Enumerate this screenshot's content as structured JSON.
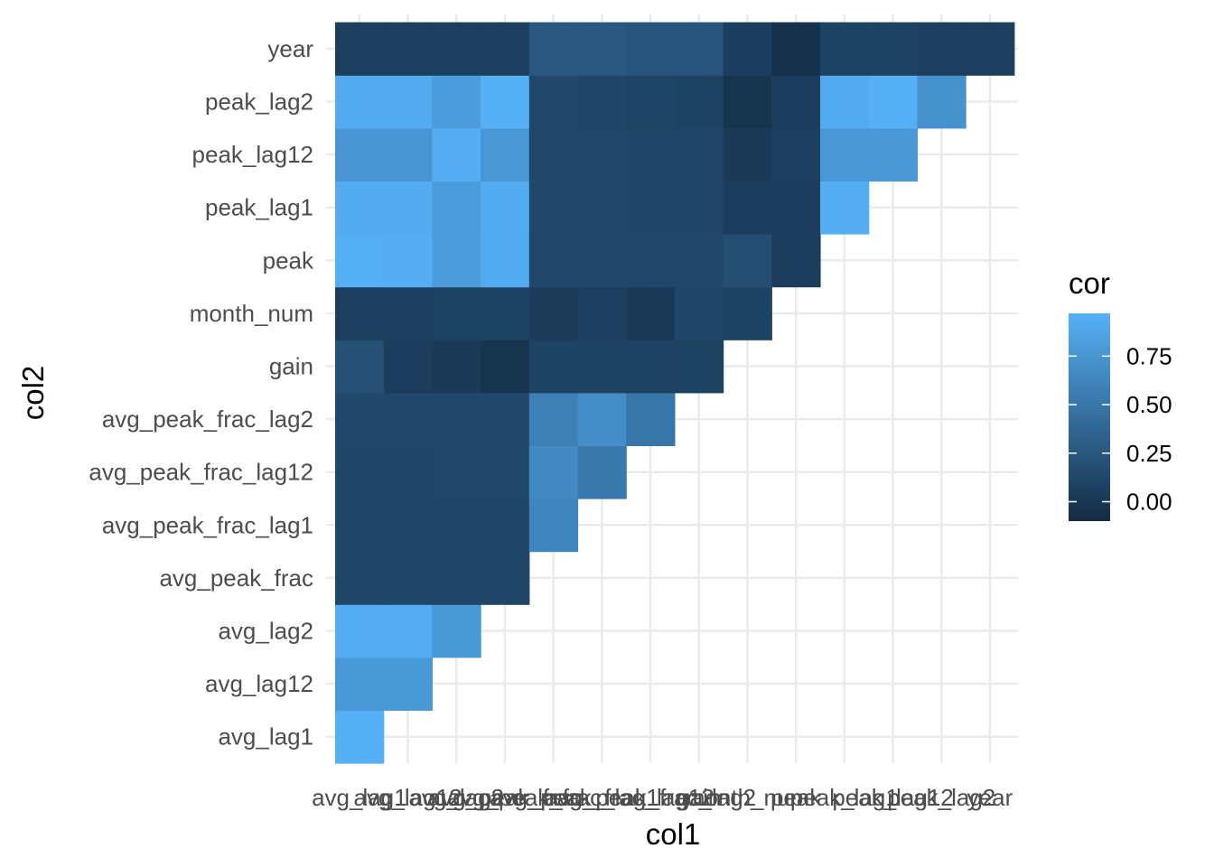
{
  "chart_data": {
    "type": "heatmap",
    "xlabel": "col1",
    "ylabel": "col2",
    "x_categories": [
      "avg_lag1",
      "avg_lag12",
      "avg_lag2",
      "avg_peak_frac",
      "avg_peak_frac_lag1",
      "avg_peak_frac_lag12",
      "avg_peak_frac_lag2",
      "gain",
      "month_num",
      "peak",
      "peak_lag1",
      "peak_lag12",
      "peak_lag2",
      "year"
    ],
    "y_categories": [
      "avg_lag1",
      "avg_lag12",
      "avg_lag2",
      "avg_peak_frac",
      "avg_peak_frac_lag1",
      "avg_peak_frac_lag12",
      "avg_peak_frac_lag2",
      "gain",
      "month_num",
      "peak",
      "peak_lag1",
      "peak_lag12",
      "peak_lag2",
      "year"
    ],
    "grid": true,
    "legend": {
      "title": "cor",
      "position": "right",
      "range": [
        -0.1,
        0.97
      ],
      "ticks": [
        0.0,
        0.25,
        0.5,
        0.75
      ],
      "tick_labels": [
        "0.00",
        "0.25",
        "0.50",
        "0.75"
      ],
      "low_color": "#132B43",
      "high_color": "#56B1F7"
    },
    "cells": {
      "avg_lag1": [
        0.96
      ],
      "avg_lag12": [
        0.78,
        0.78
      ],
      "avg_lag2": [
        0.95,
        0.95,
        0.78
      ],
      "avg_peak_frac": [
        0.12,
        0.12,
        0.12,
        0.12
      ],
      "avg_peak_frac_lag1": [
        0.12,
        0.12,
        0.12,
        0.12,
        0.62
      ],
      "avg_peak_frac_lag12": [
        0.12,
        0.12,
        0.13,
        0.13,
        0.66,
        0.52
      ],
      "avg_peak_frac_lag2": [
        0.13,
        0.13,
        0.13,
        0.13,
        0.58,
        0.68,
        0.5
      ],
      "gain": [
        0.2,
        0.05,
        0.02,
        -0.02,
        0.08,
        0.08,
        0.08,
        0.08
      ],
      "month_num": [
        0.06,
        0.06,
        0.08,
        0.08,
        0.03,
        0.06,
        0.01,
        0.12,
        0.08
      ],
      "peak": [
        0.96,
        0.95,
        0.8,
        0.92,
        0.13,
        0.13,
        0.13,
        0.13,
        0.18,
        0.05
      ],
      "peak_lag1": [
        0.93,
        0.93,
        0.8,
        0.93,
        0.13,
        0.13,
        0.12,
        0.12,
        0.05,
        0.05,
        0.95
      ],
      "peak_lag12": [
        0.75,
        0.75,
        0.95,
        0.76,
        0.13,
        0.13,
        0.12,
        0.11,
        0.02,
        0.07,
        0.76,
        0.76
      ],
      "peak_lag2": [
        0.92,
        0.92,
        0.8,
        0.96,
        0.13,
        0.12,
        0.1,
        0.08,
        -0.02,
        0.05,
        0.92,
        0.96,
        0.72
      ],
      "year": [
        0.06,
        0.06,
        0.06,
        0.06,
        0.26,
        0.26,
        0.23,
        0.23,
        0.04,
        -0.05,
        0.08,
        0.08,
        0.06,
        0.06
      ]
    }
  }
}
